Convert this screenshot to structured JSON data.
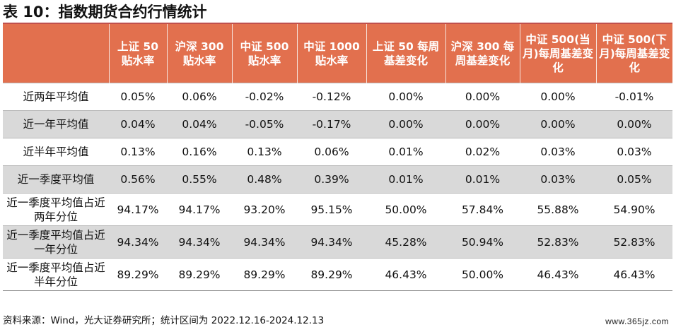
{
  "title": "表 10：指数期货合约行情统计",
  "headers": [
    "",
    "上证 50 贴水率",
    "沪深 300 贴水率",
    "中证 500 贴水率",
    "中证 1000 贴水率",
    "上证 50 每周基差变化",
    "沪深 300 每周基差变化",
    "中证 500(当月)每周基差变化",
    "中证 500(下月)每周基差变化"
  ],
  "rows": [
    {
      "label": "近两年平均值",
      "cells": [
        "0.05%",
        "0.06%",
        "-0.02%",
        "-0.12%",
        "0.00%",
        "0.00%",
        "0.00%",
        "-0.01%"
      ]
    },
    {
      "label": "近一年平均值",
      "cells": [
        "0.04%",
        "0.04%",
        "-0.05%",
        "-0.17%",
        "0.00%",
        "0.00%",
        "0.00%",
        "0.00%"
      ]
    },
    {
      "label": "近半年平均值",
      "cells": [
        "0.13%",
        "0.16%",
        "0.13%",
        "0.06%",
        "0.01%",
        "0.02%",
        "0.03%",
        "0.03%"
      ]
    },
    {
      "label": "近一季度平均值",
      "cells": [
        "0.56%",
        "0.55%",
        "0.48%",
        "0.39%",
        "0.01%",
        "0.01%",
        "0.03%",
        "0.05%"
      ]
    },
    {
      "label": "近一季度平均值占近两年分位",
      "cells": [
        "94.17%",
        "94.17%",
        "93.20%",
        "95.15%",
        "50.00%",
        "57.84%",
        "55.88%",
        "54.90%"
      ]
    },
    {
      "label": "近一季度平均值占近一年分位",
      "cells": [
        "94.34%",
        "94.34%",
        "94.34%",
        "94.34%",
        "45.28%",
        "50.94%",
        "52.83%",
        "52.83%"
      ]
    },
    {
      "label": "近一季度平均值占近半年分位",
      "cells": [
        "89.29%",
        "89.29%",
        "89.29%",
        "89.29%",
        "46.43%",
        "50.00%",
        "46.43%",
        "46.43%"
      ]
    }
  ],
  "source": "资料来源：Wind，光大证券研究所；统计区间为 2022.12.16-2024.12.13",
  "watermark": "www.365jz.com",
  "colors": {
    "header_bg": "#e2704e",
    "accent_rule": "#c0504d",
    "shade_row": "#d9d9d9"
  }
}
